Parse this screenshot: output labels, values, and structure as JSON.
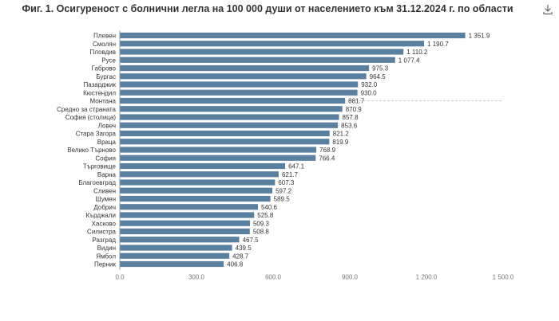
{
  "title": "Фиг. 1. Осигуреност с болнични легла на 100 000 души от населението към 31.12.2024 г. по области",
  "toolbox": {
    "icon": "download-icon"
  },
  "chart_data": {
    "type": "bar",
    "orientation": "horizontal",
    "title": "Фиг. 1. Осигуреност с болнични легла на 100 000 души от населението към 31.12.2024 г. по области",
    "xlabel": "",
    "ylabel": "",
    "xlim": [
      0,
      1500
    ],
    "xticks": [
      0,
      300,
      600,
      900,
      1200,
      1500
    ],
    "xtick_labels": [
      "0.0",
      "300.0",
      "600.0",
      "900.0",
      "1 200.0",
      "1 500.0"
    ],
    "grid": false,
    "bar_color": "#5b7f9f",
    "reference_line": {
      "category": "Монтана",
      "style": "dashed",
      "color": "#cccccc"
    },
    "categories": [
      "Плевен",
      "Смолян",
      "Пловдив",
      "Русе",
      "Габрово",
      "Бургас",
      "Пазарджик",
      "Кюстендил",
      "Монтана",
      "Средно за страната",
      "София (столица)",
      "Ловеч",
      "Стара Загора",
      "Враца",
      "Велико Търново",
      "София",
      "Търговище",
      "Варна",
      "Благоевград",
      "Сливен",
      "Шумен",
      "Добрич",
      "Кърджали",
      "Хасково",
      "Силистра",
      "Разград",
      "Видин",
      "Ямбол",
      "Перник"
    ],
    "values": [
      1351.9,
      1190.7,
      1110.2,
      1077.4,
      975.3,
      964.5,
      932.0,
      930.0,
      881.7,
      870.9,
      857.8,
      853.6,
      821.2,
      819.9,
      768.9,
      766.4,
      647.1,
      621.7,
      607.3,
      597.2,
      589.5,
      540.6,
      525.8,
      509.3,
      508.8,
      467.5,
      439.5,
      428.7,
      406.8
    ],
    "value_labels": [
      "1 351.9",
      "1 190.7",
      "1 110.2",
      "1 077.4",
      "975.3",
      "964.5",
      "932.0",
      "930.0",
      "881.7",
      "870.9",
      "857.8",
      "853.6",
      "821.2",
      "819.9",
      "768.9",
      "766.4",
      "647.1",
      "621.7",
      "607.3",
      "597.2",
      "589.5",
      "540.6",
      "525.8",
      "509.3",
      "508.8",
      "467.5",
      "439.5",
      "428.7",
      "406.8"
    ]
  }
}
